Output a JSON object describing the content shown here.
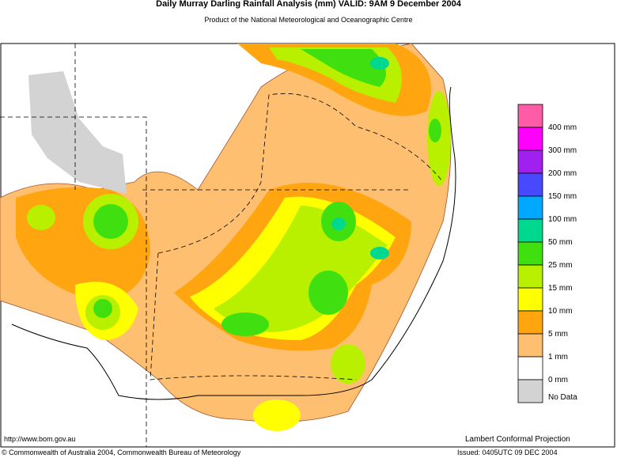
{
  "header": {
    "title": "Daily Murray Darling Rainfall Analysis (mm)  VALID: 9AM  9 December 2004",
    "subtitle": "Product of the National Meteorological and Oceanographic Centre"
  },
  "legend": {
    "colors": [
      "#ff5ca8",
      "#ff00ff",
      "#a020f0",
      "#4848ff",
      "#00a8ff",
      "#00d890",
      "#40e010",
      "#b8f000",
      "#ffff00",
      "#ffa510",
      "#ffbf70",
      "#ffffff",
      "#d3d3d3"
    ],
    "labels": [
      "400 mm",
      "300 mm",
      "200 mm",
      "150 mm",
      "100 mm",
      "50 mm",
      "25 mm",
      "15 mm",
      "10 mm",
      "5 mm",
      "1 mm",
      "0 mm",
      "No Data"
    ]
  },
  "footer": {
    "url": "http://www.bom.gov.au",
    "projection": "Lambert Conformal Projection",
    "copyright": "© Commonwealth of Australia 2004, Commonwealth Bureau of Meteorology",
    "issued": "Issued: 0405UTC 09 DEC 2004"
  }
}
